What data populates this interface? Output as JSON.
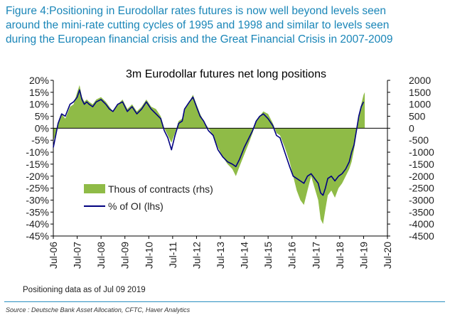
{
  "caption": {
    "lines": [
      "Figure 4:Positioning in Eurodollar rates futures is now well beyond levels seen",
      "around the mini-rate cutting cycles of 1995 and 1998 and similar to levels seen",
      "during the European financial crisis and the Great Financial Crisis in 2007-2009"
    ]
  },
  "note": "Positioning data as of Jul 09 2019",
  "source": "Source : Deutsche Bank Asset Allocation, CFTC, Haver Analytics",
  "colors": {
    "caption": "#1a86b8",
    "area": "#8fbb47",
    "line": "#000080",
    "axis": "#000000"
  },
  "chart_data": {
    "type": "area",
    "title": "3m Eurodollar futures net long positions",
    "x_unit": "year",
    "xlim": [
      2006.5,
      2020.5
    ],
    "x_ticks": [
      "Jul-06",
      "Jul-07",
      "Jul-08",
      "Jul-09",
      "Jul-10",
      "Jul-11",
      "Jul-12",
      "Jul-13",
      "Jul-14",
      "Jul-15",
      "Jul-16",
      "Jul-17",
      "Jul-18",
      "Jul-19",
      "Jul-20"
    ],
    "y_left": {
      "ylim": [
        -45,
        20
      ],
      "ticks": [
        "-45%",
        "-40%",
        "-35%",
        "-30%",
        "-25%",
        "-20%",
        "-15%",
        "-10%",
        "-5%",
        "0%",
        "5%",
        "10%",
        "15%",
        "20%"
      ]
    },
    "y_right": {
      "ylim": [
        -4500,
        2000
      ],
      "ticks": [
        "-4500",
        "-4000",
        "-3500",
        "-3000",
        "-2500",
        "-2000",
        "-1500",
        "-1000",
        "-500",
        "0",
        "500",
        "1000",
        "1500",
        "2000"
      ]
    },
    "legend": {
      "position": "left-center"
    },
    "series": [
      {
        "name": "Thous of contracts (rhs)",
        "type": "area",
        "axis": "right",
        "x": [
          2006.5,
          2006.6,
          2006.7,
          2006.85,
          2007.0,
          2007.2,
          2007.35,
          2007.5,
          2007.6,
          2007.7,
          2007.8,
          2007.9,
          2008.0,
          2008.15,
          2008.3,
          2008.5,
          2008.7,
          2008.85,
          2009.0,
          2009.2,
          2009.4,
          2009.6,
          2009.8,
          2010.0,
          2010.2,
          2010.4,
          2010.6,
          2010.8,
          2011.0,
          2011.15,
          2011.3,
          2011.45,
          2011.6,
          2011.75,
          2011.9,
          2012.0,
          2012.2,
          2012.35,
          2012.5,
          2012.65,
          2012.8,
          2013.0,
          2013.2,
          2013.4,
          2013.6,
          2013.8,
          2014.0,
          2014.15,
          2014.3,
          2014.5,
          2014.7,
          2014.85,
          2015.0,
          2015.15,
          2015.3,
          2015.5,
          2015.7,
          2015.85,
          2016.0,
          2016.2,
          2016.4,
          2016.55,
          2016.7,
          2016.85,
          2017.0,
          2017.15,
          2017.3,
          2017.45,
          2017.6,
          2017.7,
          2017.8,
          2017.9,
          2018.0,
          2018.15,
          2018.3,
          2018.45,
          2018.6,
          2018.75,
          2018.9,
          2019.0,
          2019.1,
          2019.2,
          2019.3,
          2019.4,
          2019.5,
          2019.55
        ],
        "values": [
          -500,
          -300,
          200,
          600,
          400,
          900,
          1000,
          1500,
          1800,
          1300,
          1100,
          1200,
          1100,
          1000,
          1200,
          1300,
          1100,
          900,
          700,
          1000,
          1200,
          800,
          1000,
          700,
          900,
          1200,
          900,
          800,
          500,
          0,
          -300,
          -600,
          -200,
          300,
          400,
          800,
          1100,
          1400,
          1000,
          600,
          300,
          0,
          -300,
          -800,
          -1200,
          -1500,
          -1700,
          -2000,
          -1600,
          -1100,
          -600,
          -200,
          300,
          500,
          700,
          600,
          200,
          -200,
          -300,
          -800,
          -1400,
          -2000,
          -2600,
          -3000,
          -3200,
          -2600,
          -2000,
          -2500,
          -3000,
          -3800,
          -4000,
          -3400,
          -2800,
          -2600,
          -2900,
          -2500,
          -2300,
          -2000,
          -1700,
          -1400,
          -900,
          -200,
          400,
          1000,
          1400,
          1500
        ]
      },
      {
        "name": "% of OI (lhs)",
        "type": "line",
        "axis": "left",
        "x": [
          2006.5,
          2006.6,
          2006.7,
          2006.85,
          2007.0,
          2007.2,
          2007.35,
          2007.5,
          2007.6,
          2007.7,
          2007.8,
          2007.9,
          2008.0,
          2008.15,
          2008.3,
          2008.5,
          2008.7,
          2008.85,
          2009.0,
          2009.2,
          2009.4,
          2009.6,
          2009.8,
          2010.0,
          2010.2,
          2010.4,
          2010.6,
          2010.8,
          2011.0,
          2011.15,
          2011.3,
          2011.45,
          2011.6,
          2011.75,
          2011.9,
          2012.0,
          2012.2,
          2012.35,
          2012.5,
          2012.65,
          2012.8,
          2013.0,
          2013.2,
          2013.4,
          2013.6,
          2013.8,
          2014.0,
          2014.15,
          2014.3,
          2014.5,
          2014.7,
          2014.85,
          2015.0,
          2015.15,
          2015.3,
          2015.5,
          2015.7,
          2015.85,
          2016.0,
          2016.2,
          2016.4,
          2016.55,
          2016.7,
          2016.85,
          2017.0,
          2017.15,
          2017.3,
          2017.45,
          2017.6,
          2017.7,
          2017.8,
          2017.9,
          2018.0,
          2018.15,
          2018.3,
          2018.45,
          2018.6,
          2018.75,
          2018.9,
          2019.0,
          2019.1,
          2019.2,
          2019.3,
          2019.4,
          2019.5
        ],
        "values": [
          -8,
          -3,
          2,
          6,
          5,
          10,
          11,
          13,
          16,
          12,
          10,
          11,
          10,
          9,
          11,
          12,
          10,
          8,
          7,
          10,
          11,
          7,
          9,
          6,
          8,
          11,
          8,
          6,
          4,
          -1,
          -4,
          -9,
          -3,
          2,
          3,
          8,
          11,
          13,
          9,
          5,
          3,
          -1,
          -3,
          -9,
          -12,
          -14,
          -15,
          -16,
          -13,
          -8,
          -4,
          -1,
          3,
          5,
          6,
          4,
          1,
          -3,
          -4,
          -10,
          -16,
          -20,
          -21,
          -22,
          -23,
          -20,
          -19,
          -21,
          -23,
          -27,
          -28,
          -25,
          -21,
          -20,
          -22,
          -20,
          -19,
          -17,
          -14,
          -10,
          -7,
          -1,
          5,
          9,
          11
        ]
      }
    ]
  }
}
